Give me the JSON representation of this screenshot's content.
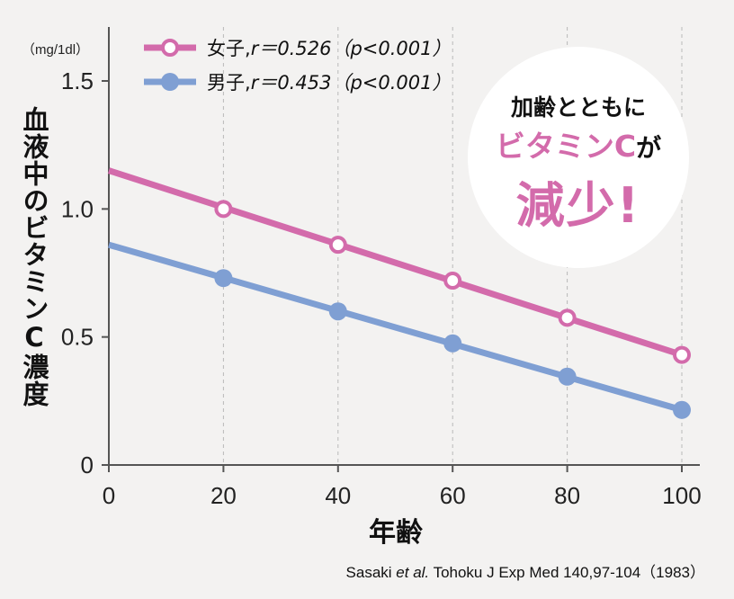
{
  "chart_data": {
    "type": "line",
    "unit_label": "（mg/1dl）",
    "ylabel": "血液中のビタミンC濃度",
    "xlabel": "年齢",
    "x_ticks": [
      "0",
      "20",
      "40",
      "60",
      "80",
      "100"
    ],
    "y_ticks": [
      "0",
      "0.5",
      "1.0",
      "1.5"
    ],
    "xlim": [
      0,
      100
    ],
    "ylim": [
      0,
      1.5
    ],
    "grid": "vertical dashed",
    "legend_position": "top-left",
    "series": [
      {
        "name": "女子,",
        "stat": "r＝0.526（p<0.001）",
        "color": "#d36bab",
        "marker": "hollow",
        "line_x": [
          0,
          100
        ],
        "line_y": [
          1.15,
          0.43
        ],
        "x": [
          20,
          40,
          60,
          80,
          100
        ],
        "y": [
          1.0,
          0.86,
          0.72,
          0.575,
          0.43
        ]
      },
      {
        "name": "男子,",
        "stat": "r＝0.453（p<0.001）",
        "color": "#7f9fd3",
        "marker": "filled",
        "line_x": [
          0,
          100
        ],
        "line_y": [
          0.86,
          0.215
        ],
        "x": [
          20,
          40,
          60,
          80,
          100
        ],
        "y": [
          0.73,
          0.6,
          0.475,
          0.345,
          0.215
        ]
      }
    ]
  },
  "callout": {
    "line1": "加齢とともに",
    "line2_main": "ビタミンC",
    "line2_suffix": "が",
    "line3": "減少!"
  },
  "source": {
    "authors": "Sasaki ",
    "etal": "et al.",
    "rest": " Tohoku J Exp Med 140,97-104（1983）"
  }
}
